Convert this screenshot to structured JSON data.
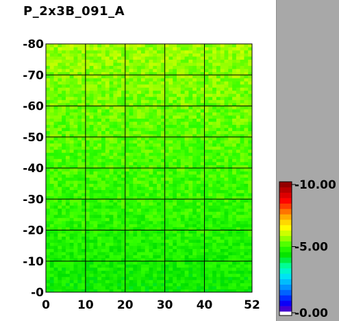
{
  "title": "P_2x3B_091_A",
  "chart_data": {
    "type": "heatmap",
    "title": "P_2x3B_091_A",
    "xlabel": "",
    "ylabel": "",
    "x_range": [
      0,
      52
    ],
    "y_range": [
      0,
      80
    ],
    "x_ticks": [
      0,
      10,
      20,
      30,
      40,
      52
    ],
    "y_ticks": [
      0,
      10,
      20,
      30,
      40,
      50,
      60,
      70,
      80
    ],
    "x_tick_labels": [
      "0",
      "10",
      "20",
      "30",
      "40",
      "52"
    ],
    "y_tick_labels": [
      "-0",
      "-10",
      "-20",
      "-30",
      "-40",
      "-50",
      "-60",
      "-70",
      "-80"
    ],
    "grid": true,
    "cols": 52,
    "rows": 80,
    "value_trend": {
      "bottom_mean": 4.5,
      "top_mean": 5.7,
      "spread": 0.4
    },
    "colorbar": {
      "min": 0.0,
      "max": 10.0,
      "labels": [
        "10.00",
        "5.00",
        "0.00"
      ],
      "label_values": [
        10.0,
        5.0,
        0.0
      ],
      "colors": [
        "#6000c0",
        "#0000ff",
        "#0060ff",
        "#00b0ff",
        "#00f0f0",
        "#00ff90",
        "#00e000",
        "#30ff00",
        "#a0ff00",
        "#ffff00",
        "#ffc000",
        "#ff6000",
        "#ff0000",
        "#c00000",
        "#800000"
      ]
    }
  }
}
